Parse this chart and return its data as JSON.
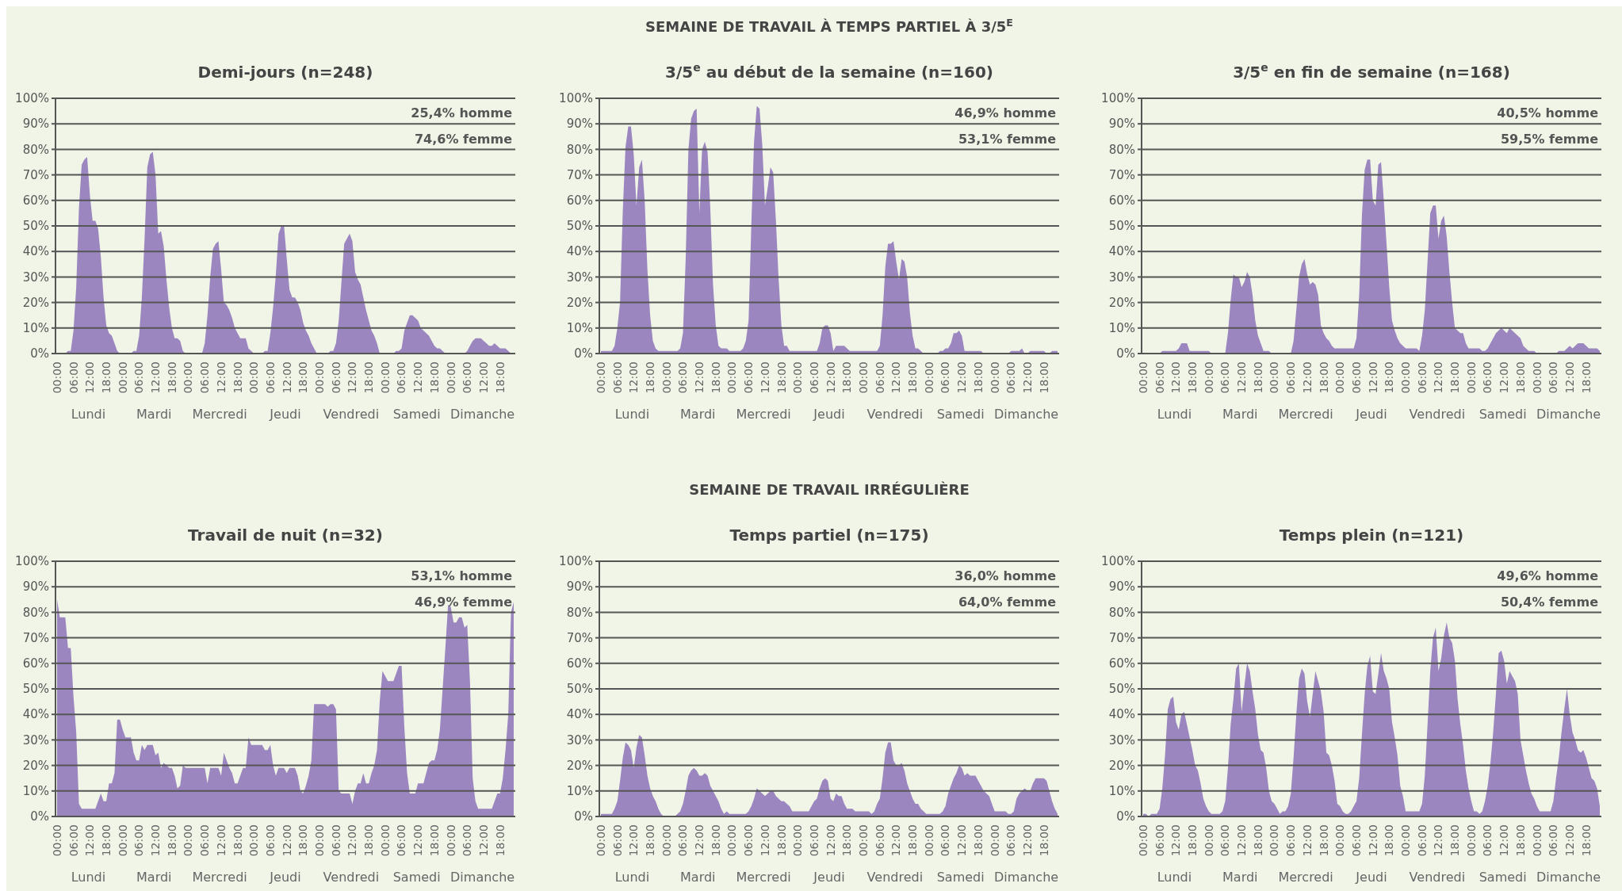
{
  "chart_data": [
    {
      "type": "area",
      "title": "Demi-jours (n=248)",
      "grid": "y",
      "ylim": [
        0,
        100
      ],
      "yticks": [
        {
          "value": 0,
          "label": "0%"
        },
        {
          "value": 10,
          "label": "10%"
        },
        {
          "value": 20,
          "label": "20%"
        },
        {
          "value": 30,
          "label": "30%"
        },
        {
          "value": 40,
          "label": "40%"
        },
        {
          "value": 50,
          "label": "50%"
        },
        {
          "value": 60,
          "label": "60%"
        },
        {
          "value": 70,
          "label": "70%"
        },
        {
          "value": 80,
          "label": "80%"
        },
        {
          "value": 90,
          "label": "90%"
        },
        {
          "value": 100,
          "label": "100%"
        }
      ],
      "categories": [
        "00:00",
        null,
        null,
        null,
        null,
        null,
        "06:00",
        null,
        null,
        null,
        null,
        null,
        "12:00",
        null,
        null,
        null,
        null,
        null,
        "18:00",
        null,
        null,
        null,
        null,
        null,
        "00:00",
        null,
        null,
        null,
        null,
        null,
        "06:00",
        null,
        null,
        null,
        null,
        null,
        "12:00",
        null,
        null,
        null,
        null,
        null,
        "18:00",
        null,
        null,
        null,
        null,
        null,
        "00:00",
        null,
        null,
        null,
        null,
        null,
        "06:00",
        null,
        null,
        null,
        null,
        null,
        "12:00",
        null,
        null,
        null,
        null,
        null,
        "18:00",
        null,
        null,
        null,
        null,
        null,
        "00:00",
        null,
        null,
        null,
        null,
        null,
        "06:00",
        null,
        null,
        null,
        null,
        null,
        "12:00",
        null,
        null,
        null,
        null,
        null,
        "18:00",
        null,
        null,
        null,
        null,
        null,
        "00:00",
        null,
        null,
        null,
        null,
        null,
        "06:00",
        null,
        null,
        null,
        null,
        null,
        "12:00",
        null,
        null,
        null,
        null,
        null,
        "18:00",
        null,
        null,
        null,
        null,
        null,
        "00:00",
        null,
        null,
        null,
        null,
        null,
        "06:00",
        null,
        null,
        null,
        null,
        null,
        "12:00",
        null,
        null,
        null,
        null,
        null,
        "18:00",
        null,
        null,
        null,
        null,
        null,
        "00:00",
        null,
        null,
        null,
        null,
        null,
        "06:00",
        null,
        null,
        null,
        null,
        null,
        "12:00",
        null,
        null,
        null,
        null,
        null,
        "18:00",
        null,
        null,
        null,
        null,
        null
      ],
      "annotations": [
        "25,4% homme",
        "74,6% femme",
        "Lundi",
        "Mardi",
        "Mercredi",
        "Jeudi",
        "Vendredi",
        "Samedi",
        "Dimanche"
      ],
      "series": [
        {
          "color": "#9b86c0",
          "values": [
            0,
            0,
            0,
            0,
            1,
            1,
            9,
            26,
            57,
            74,
            76,
            77,
            62,
            52,
            52,
            49,
            38,
            22,
            11,
            8,
            7,
            4,
            1,
            0,
            0,
            0,
            0,
            0,
            1,
            1,
            7,
            22,
            45,
            73,
            78,
            79,
            70,
            47,
            48,
            42,
            29,
            18,
            10,
            6,
            6,
            5,
            1,
            0,
            0,
            0,
            0,
            0,
            0,
            0,
            4,
            15,
            30,
            41,
            43,
            44,
            33,
            20,
            19,
            17,
            14,
            10,
            8,
            6,
            6,
            6,
            2,
            1,
            0,
            0,
            0,
            0,
            1,
            1,
            8,
            18,
            31,
            47,
            50,
            50,
            37,
            25,
            22,
            22,
            20,
            17,
            12,
            9,
            7,
            4,
            2,
            0,
            0,
            0,
            0,
            0,
            1,
            1,
            4,
            13,
            28,
            43,
            45,
            47,
            44,
            32,
            29,
            27,
            22,
            17,
            13,
            9,
            7,
            4,
            0,
            0,
            0,
            0,
            0,
            0,
            1,
            1,
            2,
            9,
            12,
            15,
            15,
            14,
            13,
            10,
            9,
            8,
            7,
            5,
            3,
            2,
            2,
            1,
            0,
            0,
            0,
            0,
            0,
            0,
            0,
            0,
            1,
            3,
            5,
            6,
            6,
            6,
            5,
            4,
            3,
            3,
            4,
            3,
            2,
            2,
            2,
            1,
            0,
            0
          ]
        }
      ]
    },
    {
      "type": "area",
      "subtitle": "SEMAINE DE TRAVAIL À TEMPS PARTIEL À 3/5$^{E}$",
      "title": "3/5$^{e}$ au début de la semaine (n=160)",
      "grid": "y",
      "ylim": [
        0,
        100
      ],
      "yticks": [
        {
          "value": 0,
          "label": "0%"
        },
        {
          "value": 10,
          "label": "10%"
        },
        {
          "value": 20,
          "label": "20%"
        },
        {
          "value": 30,
          "label": "30%"
        },
        {
          "value": 40,
          "label": "40%"
        },
        {
          "value": 50,
          "label": "50%"
        },
        {
          "value": 60,
          "label": "60%"
        },
        {
          "value": 70,
          "label": "70%"
        },
        {
          "value": 80,
          "label": "80%"
        },
        {
          "value": 90,
          "label": "90%"
        },
        {
          "value": 100,
          "label": "100%"
        }
      ],
      "categories": [
        "00:00",
        null,
        null,
        null,
        null,
        null,
        "06:00",
        null,
        null,
        null,
        null,
        null,
        "12:00",
        null,
        null,
        null,
        null,
        null,
        "18:00",
        null,
        null,
        null,
        null,
        null,
        "00:00",
        null,
        null,
        null,
        null,
        null,
        "06:00",
        null,
        null,
        null,
        null,
        null,
        "12:00",
        null,
        null,
        null,
        null,
        null,
        "18:00",
        null,
        null,
        null,
        null,
        null,
        "00:00",
        null,
        null,
        null,
        null,
        null,
        "06:00",
        null,
        null,
        null,
        null,
        null,
        "12:00",
        null,
        null,
        null,
        null,
        null,
        "18:00",
        null,
        null,
        null,
        null,
        null,
        "00:00",
        null,
        null,
        null,
        null,
        null,
        "06:00",
        null,
        null,
        null,
        null,
        null,
        "12:00",
        null,
        null,
        null,
        null,
        null,
        "18:00",
        null,
        null,
        null,
        null,
        null,
        "00:00",
        null,
        null,
        null,
        null,
        null,
        "06:00",
        null,
        null,
        null,
        null,
        null,
        "12:00",
        null,
        null,
        null,
        null,
        null,
        "18:00",
        null,
        null,
        null,
        null,
        null,
        "00:00",
        null,
        null,
        null,
        null,
        null,
        "06:00",
        null,
        null,
        null,
        null,
        null,
        "12:00",
        null,
        null,
        null,
        null,
        null,
        "18:00",
        null,
        null,
        null,
        null,
        null,
        "00:00",
        null,
        null,
        null,
        null,
        null,
        "06:00",
        null,
        null,
        null,
        null,
        null,
        "12:00",
        null,
        null,
        null,
        null,
        null,
        "18:00",
        null,
        null,
        null,
        null,
        null
      ],
      "annotations": [
        "46,9% homme",
        "53,1% femme",
        "Lundi",
        "Mardi",
        "Mercredi",
        "Jeudi",
        "Vendredi",
        "Samedi",
        "Dimanche"
      ],
      "series": [
        {
          "color": "#9b86c0",
          "values": [
            1,
            1,
            1,
            1,
            1,
            3,
            10,
            20,
            56,
            81,
            89,
            89,
            78,
            58,
            73,
            76,
            60,
            33,
            15,
            5,
            2,
            1,
            1,
            1,
            1,
            1,
            1,
            1,
            1,
            2,
            8,
            37,
            80,
            92,
            95,
            96,
            55,
            80,
            83,
            79,
            57,
            27,
            11,
            3,
            2,
            2,
            2,
            1,
            1,
            1,
            1,
            1,
            2,
            5,
            13,
            50,
            83,
            97,
            96,
            82,
            58,
            65,
            73,
            71,
            52,
            29,
            11,
            3,
            3,
            1,
            1,
            1,
            1,
            1,
            1,
            1,
            1,
            1,
            1,
            1,
            4,
            10,
            11,
            11,
            8,
            1,
            3,
            3,
            3,
            3,
            2,
            1,
            1,
            1,
            1,
            1,
            1,
            1,
            1,
            1,
            1,
            1,
            3,
            15,
            34,
            43,
            43,
            44,
            36,
            29,
            37,
            36,
            30,
            16,
            7,
            2,
            2,
            1,
            0,
            0,
            0,
            0,
            0,
            0,
            1,
            1,
            2,
            2,
            4,
            8,
            8,
            9,
            7,
            1,
            1,
            1,
            1,
            1,
            1,
            1,
            0,
            0,
            0,
            0,
            0,
            0,
            0,
            0,
            0,
            0,
            1,
            1,
            1,
            1,
            2,
            0,
            0,
            1,
            1,
            1,
            1,
            1,
            1,
            0,
            0,
            1,
            1,
            1
          ]
        }
      ]
    },
    {
      "type": "area",
      "title": "3/5$^{e}$ en fin de semaine (n=168)",
      "grid": "y",
      "ylim": [
        0,
        100
      ],
      "yticks": [
        {
          "value": 0,
          "label": "0%"
        },
        {
          "value": 10,
          "label": "10%"
        },
        {
          "value": 20,
          "label": "20%"
        },
        {
          "value": 30,
          "label": "30%"
        },
        {
          "value": 40,
          "label": "40%"
        },
        {
          "value": 50,
          "label": "50%"
        },
        {
          "value": 60,
          "label": "60%"
        },
        {
          "value": 70,
          "label": "70%"
        },
        {
          "value": 80,
          "label": "80%"
        },
        {
          "value": 90,
          "label": "90%"
        },
        {
          "value": 100,
          "label": "100%"
        }
      ],
      "categories": [
        "00:00",
        null,
        null,
        null,
        null,
        null,
        "06:00",
        null,
        null,
        null,
        null,
        null,
        "12:00",
        null,
        null,
        null,
        null,
        null,
        "18:00",
        null,
        null,
        null,
        null,
        null,
        "00:00",
        null,
        null,
        null,
        null,
        null,
        "06:00",
        null,
        null,
        null,
        null,
        null,
        "12:00",
        null,
        null,
        null,
        null,
        null,
        "18:00",
        null,
        null,
        null,
        null,
        null,
        "00:00",
        null,
        null,
        null,
        null,
        null,
        "06:00",
        null,
        null,
        null,
        null,
        null,
        "12:00",
        null,
        null,
        null,
        null,
        null,
        "18:00",
        null,
        null,
        null,
        null,
        null,
        "00:00",
        null,
        null,
        null,
        null,
        null,
        "06:00",
        null,
        null,
        null,
        null,
        null,
        "12:00",
        null,
        null,
        null,
        null,
        null,
        "18:00",
        null,
        null,
        null,
        null,
        null,
        "00:00",
        null,
        null,
        null,
        null,
        null,
        "06:00",
        null,
        null,
        null,
        null,
        null,
        "12:00",
        null,
        null,
        null,
        null,
        null,
        "18:00",
        null,
        null,
        null,
        null,
        null,
        "00:00",
        null,
        null,
        null,
        null,
        null,
        "06:00",
        null,
        null,
        null,
        null,
        null,
        "12:00",
        null,
        null,
        null,
        null,
        null,
        "18:00",
        null,
        null,
        null,
        null,
        null,
        "00:00",
        null,
        null,
        null,
        null,
        null,
        "06:00",
        null,
        null,
        null,
        null,
        null,
        "12:00",
        null,
        null,
        null,
        null,
        null,
        "18:00",
        null,
        null,
        null,
        null,
        null
      ],
      "annotations": [
        "40,5% homme",
        "59,5% femme",
        "Lundi",
        "Mardi",
        "Mercredi",
        "Jeudi",
        "Vendredi",
        "Samedi",
        "Dimanche"
      ],
      "series": [
        {
          "color": "#9b86c0",
          "values": [
            0,
            0,
            0,
            0,
            0,
            0,
            0,
            1,
            1,
            1,
            1,
            1,
            1,
            2,
            4,
            4,
            4,
            1,
            1,
            1,
            1,
            1,
            1,
            1,
            1,
            0,
            0,
            0,
            0,
            0,
            0,
            8,
            21,
            31,
            30,
            30,
            26,
            28,
            32,
            30,
            23,
            13,
            7,
            4,
            1,
            1,
            1,
            0,
            0,
            0,
            0,
            0,
            0,
            0,
            0,
            5,
            17,
            30,
            35,
            37,
            31,
            27,
            28,
            27,
            23,
            11,
            8,
            6,
            5,
            3,
            2,
            2,
            2,
            2,
            2,
            2,
            2,
            2,
            6,
            23,
            54,
            72,
            76,
            76,
            60,
            58,
            74,
            75,
            60,
            43,
            26,
            13,
            9,
            6,
            4,
            3,
            2,
            2,
            2,
            2,
            2,
            1,
            7,
            17,
            36,
            55,
            58,
            58,
            45,
            52,
            54,
            46,
            32,
            20,
            10,
            9,
            8,
            8,
            4,
            2,
            2,
            2,
            2,
            2,
            1,
            1,
            2,
            4,
            6,
            8,
            9,
            10,
            9,
            8,
            10,
            9,
            8,
            7,
            6,
            3,
            2,
            1,
            1,
            1,
            0,
            0,
            0,
            0,
            0,
            0,
            0,
            0,
            1,
            1,
            1,
            2,
            3,
            2,
            3,
            4,
            4,
            4,
            3,
            2,
            2,
            2,
            2,
            1
          ]
        }
      ]
    },
    {
      "type": "area",
      "title": "Travail de nuit (n=32)",
      "grid": "y",
      "ylim": [
        0,
        100
      ],
      "yticks": [
        {
          "value": 0,
          "label": "0%"
        },
        {
          "value": 10,
          "label": "10%"
        },
        {
          "value": 20,
          "label": "20%"
        },
        {
          "value": 30,
          "label": "30%"
        },
        {
          "value": 40,
          "label": "40%"
        },
        {
          "value": 50,
          "label": "50%"
        },
        {
          "value": 60,
          "label": "60%"
        },
        {
          "value": 70,
          "label": "70%"
        },
        {
          "value": 80,
          "label": "80%"
        },
        {
          "value": 90,
          "label": "90%"
        },
        {
          "value": 100,
          "label": "100%"
        }
      ],
      "categories": [
        "00:00",
        null,
        null,
        null,
        null,
        null,
        "06:00",
        null,
        null,
        null,
        null,
        null,
        "12:00",
        null,
        null,
        null,
        null,
        null,
        "18:00",
        null,
        null,
        null,
        null,
        null,
        "00:00",
        null,
        null,
        null,
        null,
        null,
        "06:00",
        null,
        null,
        null,
        null,
        null,
        "12:00",
        null,
        null,
        null,
        null,
        null,
        "18:00",
        null,
        null,
        null,
        null,
        null,
        "00:00",
        null,
        null,
        null,
        null,
        null,
        "06:00",
        null,
        null,
        null,
        null,
        null,
        "12:00",
        null,
        null,
        null,
        null,
        null,
        "18:00",
        null,
        null,
        null,
        null,
        null,
        "00:00",
        null,
        null,
        null,
        null,
        null,
        "06:00",
        null,
        null,
        null,
        null,
        null,
        "12:00",
        null,
        null,
        null,
        null,
        null,
        "18:00",
        null,
        null,
        null,
        null,
        null,
        "00:00",
        null,
        null,
        null,
        null,
        null,
        "06:00",
        null,
        null,
        null,
        null,
        null,
        "12:00",
        null,
        null,
        null,
        null,
        null,
        "18:00",
        null,
        null,
        null,
        null,
        null,
        "00:00",
        null,
        null,
        null,
        null,
        null,
        "06:00",
        null,
        null,
        null,
        null,
        null,
        "12:00",
        null,
        null,
        null,
        null,
        null,
        "18:00",
        null,
        null,
        null,
        null,
        null,
        "00:00",
        null,
        null,
        null,
        null,
        null,
        "06:00",
        null,
        null,
        null,
        null,
        null,
        "12:00",
        null,
        null,
        null,
        null,
        null,
        "18:00",
        null,
        null,
        null,
        null,
        null
      ],
      "annotations": [
        "53,1% homme",
        "46,9% femme",
        "Lundi",
        "Mardi",
        "Mercredi",
        "Jeudi",
        "Vendredi",
        "Samedi",
        "Dimanche"
      ],
      "series": [
        {
          "color": "#9b86c0",
          "values": [
            85,
            78,
            78,
            78,
            66,
            66,
            47,
            33,
            5,
            3,
            3,
            3,
            3,
            3,
            3,
            6,
            9,
            6,
            6,
            13,
            13,
            17,
            38,
            38,
            34,
            31,
            31,
            31,
            25,
            22,
            22,
            28,
            26,
            28,
            28,
            28,
            24,
            25,
            19,
            21,
            20,
            19,
            19,
            16,
            11,
            12,
            20,
            19,
            19,
            19,
            19,
            19,
            19,
            19,
            19,
            13,
            19,
            19,
            19,
            19,
            16,
            25,
            22,
            19,
            17,
            13,
            13,
            16,
            19,
            19,
            31,
            28,
            28,
            28,
            28,
            28,
            26,
            26,
            28,
            20,
            16,
            19,
            19,
            19,
            17,
            19,
            19,
            19,
            16,
            10,
            9,
            12,
            16,
            22,
            44,
            44,
            44,
            44,
            44,
            43,
            44,
            44,
            42,
            10,
            9,
            9,
            9,
            9,
            5,
            10,
            13,
            13,
            17,
            13,
            13,
            17,
            20,
            26,
            45,
            57,
            55,
            53,
            53,
            53,
            56,
            59,
            59,
            35,
            17,
            9,
            9,
            9,
            13,
            13,
            13,
            17,
            21,
            22,
            22,
            26,
            34,
            50,
            66,
            83,
            82,
            76,
            76,
            78,
            78,
            74,
            75,
            53,
            15,
            6,
            3,
            3,
            3,
            3,
            3,
            3,
            6,
            9,
            9,
            15,
            26,
            40,
            80,
            84
          ]
        }
      ]
    },
    {
      "type": "area",
      "subtitle": "SEMAINE DE TRAVAIL IRRÉGULIÈRE",
      "title": "Temps partiel (n=175)",
      "grid": "y",
      "ylim": [
        0,
        100
      ],
      "yticks": [
        {
          "value": 0,
          "label": "0%"
        },
        {
          "value": 10,
          "label": "10%"
        },
        {
          "value": 20,
          "label": "20%"
        },
        {
          "value": 30,
          "label": "30%"
        },
        {
          "value": 40,
          "label": "40%"
        },
        {
          "value": 50,
          "label": "50%"
        },
        {
          "value": 60,
          "label": "60%"
        },
        {
          "value": 70,
          "label": "70%"
        },
        {
          "value": 80,
          "label": "80%"
        },
        {
          "value": 90,
          "label": "90%"
        },
        {
          "value": 100,
          "label": "100%"
        }
      ],
      "categories": [
        "00:00",
        null,
        null,
        null,
        null,
        null,
        "06:00",
        null,
        null,
        null,
        null,
        null,
        "12:00",
        null,
        null,
        null,
        null,
        null,
        "18:00",
        null,
        null,
        null,
        null,
        null,
        "00:00",
        null,
        null,
        null,
        null,
        null,
        "06:00",
        null,
        null,
        null,
        null,
        null,
        "12:00",
        null,
        null,
        null,
        null,
        null,
        "18:00",
        null,
        null,
        null,
        null,
        null,
        "00:00",
        null,
        null,
        null,
        null,
        null,
        "06:00",
        null,
        null,
        null,
        null,
        null,
        "12:00",
        null,
        null,
        null,
        null,
        null,
        "18:00",
        null,
        null,
        null,
        null,
        null,
        "00:00",
        null,
        null,
        null,
        null,
        null,
        "06:00",
        null,
        null,
        null,
        null,
        null,
        "12:00",
        null,
        null,
        null,
        null,
        null,
        "18:00",
        null,
        null,
        null,
        null,
        null,
        "00:00",
        null,
        null,
        null,
        null,
        null,
        "06:00",
        null,
        null,
        null,
        null,
        null,
        "12:00",
        null,
        null,
        null,
        null,
        null,
        "18:00",
        null,
        null,
        null,
        null,
        null,
        "00:00",
        null,
        null,
        null,
        null,
        null,
        "06:00",
        null,
        null,
        null,
        null,
        null,
        "12:00",
        null,
        null,
        null,
        null,
        null,
        "18:00",
        null,
        null,
        null,
        null,
        null,
        "00:00",
        null,
        null,
        null,
        null,
        null,
        "06:00",
        null,
        null,
        null,
        null,
        null,
        "12:00",
        null,
        null,
        null,
        null,
        null,
        "18:00",
        null,
        null,
        null,
        null,
        null
      ],
      "annotations": [
        "36,0% homme",
        "64,0% femme",
        "Lundi",
        "Mardi",
        "Mercredi",
        "Jeudi",
        "Vendredi",
        "Samedi",
        "Dimanche"
      ],
      "series": [
        {
          "color": "#9b86c0",
          "values": [
            1,
            1,
            1,
            1,
            1,
            3,
            6,
            14,
            23,
            29,
            28,
            26,
            19,
            27,
            32,
            31,
            24,
            16,
            11,
            8,
            6,
            3,
            1,
            0,
            0,
            0,
            0,
            0,
            1,
            2,
            5,
            10,
            16,
            18,
            19,
            18,
            16,
            16,
            17,
            16,
            12,
            10,
            8,
            6,
            3,
            1,
            2,
            1,
            1,
            1,
            1,
            1,
            1,
            1,
            2,
            4,
            7,
            11,
            10,
            9,
            8,
            9,
            10,
            10,
            8,
            7,
            6,
            6,
            5,
            4,
            2,
            2,
            2,
            2,
            2,
            2,
            2,
            4,
            6,
            7,
            11,
            14,
            15,
            14,
            7,
            6,
            9,
            8,
            8,
            5,
            3,
            3,
            3,
            2,
            2,
            2,
            2,
            2,
            2,
            1,
            2,
            5,
            7,
            15,
            25,
            29,
            29,
            22,
            20,
            20,
            21,
            18,
            13,
            10,
            7,
            5,
            5,
            3,
            2,
            1,
            1,
            1,
            1,
            1,
            1,
            2,
            4,
            9,
            12,
            15,
            17,
            20,
            19,
            16,
            17,
            16,
            16,
            16,
            14,
            12,
            10,
            9,
            8,
            5,
            2,
            2,
            2,
            2,
            2,
            1,
            1,
            2,
            7,
            9,
            10,
            11,
            10,
            10,
            13,
            15,
            15,
            15,
            15,
            14,
            10,
            6,
            3,
            1
          ]
        }
      ]
    },
    {
      "type": "area",
      "title": "Temps plein (n=121)",
      "grid": "y",
      "ylim": [
        0,
        100
      ],
      "yticks": [
        {
          "value": 0,
          "label": "0%"
        },
        {
          "value": 10,
          "label": "10%"
        },
        {
          "value": 20,
          "label": "20%"
        },
        {
          "value": 30,
          "label": "30%"
        },
        {
          "value": 40,
          "label": "40%"
        },
        {
          "value": 50,
          "label": "50%"
        },
        {
          "value": 60,
          "label": "60%"
        },
        {
          "value": 70,
          "label": "70%"
        },
        {
          "value": 80,
          "label": "80%"
        },
        {
          "value": 90,
          "label": "90%"
        },
        {
          "value": 100,
          "label": "100%"
        }
      ],
      "categories": [
        "00:00",
        null,
        null,
        null,
        null,
        null,
        "06:00",
        null,
        null,
        null,
        null,
        null,
        "12:00",
        null,
        null,
        null,
        null,
        null,
        "18:00",
        null,
        null,
        null,
        null,
        null,
        "00:00",
        null,
        null,
        null,
        null,
        null,
        "06:00",
        null,
        null,
        null,
        null,
        null,
        "12:00",
        null,
        null,
        null,
        null,
        null,
        "18:00",
        null,
        null,
        null,
        null,
        null,
        "00:00",
        null,
        null,
        null,
        null,
        null,
        "06:00",
        null,
        null,
        null,
        null,
        null,
        "12:00",
        null,
        null,
        null,
        null,
        null,
        "18:00",
        null,
        null,
        null,
        null,
        null,
        "00:00",
        null,
        null,
        null,
        null,
        null,
        "06:00",
        null,
        null,
        null,
        null,
        null,
        "12:00",
        null,
        null,
        null,
        null,
        null,
        "18:00",
        null,
        null,
        null,
        null,
        null,
        "00:00",
        null,
        null,
        null,
        null,
        null,
        "06:00",
        null,
        null,
        null,
        null,
        null,
        "12:00",
        null,
        null,
        null,
        null,
        null,
        "18:00",
        null,
        null,
        null,
        null,
        null,
        "00:00",
        null,
        null,
        null,
        null,
        null,
        "06:00",
        null,
        null,
        null,
        null,
        null,
        "12:00",
        null,
        null,
        null,
        null,
        null,
        "18:00",
        null,
        null,
        null,
        null,
        null,
        "00:00",
        null,
        null,
        null,
        null,
        null,
        "06:00",
        null,
        null,
        null,
        null,
        null,
        "12:00",
        null,
        null,
        null,
        null,
        null,
        "18:00",
        null,
        null,
        null,
        null,
        null
      ],
      "annotations": [
        "49,6% homme",
        "50,4% femme",
        "Lundi",
        "Mardi",
        "Mercredi",
        "Jeudi",
        "Vendredi",
        "Samedi",
        "Dimanche"
      ],
      "series": [
        {
          "color": "#9b86c0",
          "values": [
            1,
            1,
            0,
            1,
            1,
            1,
            3,
            11,
            24,
            42,
            46,
            47,
            37,
            34,
            40,
            41,
            36,
            31,
            26,
            20,
            18,
            13,
            7,
            4,
            2,
            1,
            1,
            1,
            1,
            2,
            6,
            19,
            36,
            46,
            58,
            60,
            41,
            51,
            60,
            57,
            49,
            42,
            32,
            26,
            25,
            19,
            10,
            6,
            5,
            3,
            1,
            2,
            2,
            4,
            9,
            23,
            40,
            54,
            58,
            56,
            45,
            39,
            48,
            57,
            53,
            49,
            41,
            25,
            24,
            20,
            14,
            5,
            4,
            2,
            1,
            1,
            2,
            4,
            6,
            15,
            32,
            48,
            59,
            63,
            49,
            48,
            56,
            64,
            57,
            54,
            50,
            37,
            31,
            24,
            12,
            8,
            2,
            2,
            2,
            2,
            2,
            2,
            5,
            16,
            36,
            57,
            70,
            74,
            57,
            62,
            71,
            76,
            70,
            68,
            61,
            46,
            36,
            28,
            18,
            11,
            6,
            2,
            2,
            1,
            2,
            6,
            12,
            21,
            33,
            48,
            64,
            65,
            61,
            52,
            57,
            55,
            53,
            48,
            30,
            24,
            18,
            13,
            9,
            7,
            4,
            2,
            2,
            2,
            2,
            2,
            6,
            15,
            23,
            33,
            42,
            50,
            40,
            33,
            30,
            26,
            25,
            26,
            23,
            19,
            15,
            14,
            11,
            4
          ]
        }
      ]
    }
  ]
}
